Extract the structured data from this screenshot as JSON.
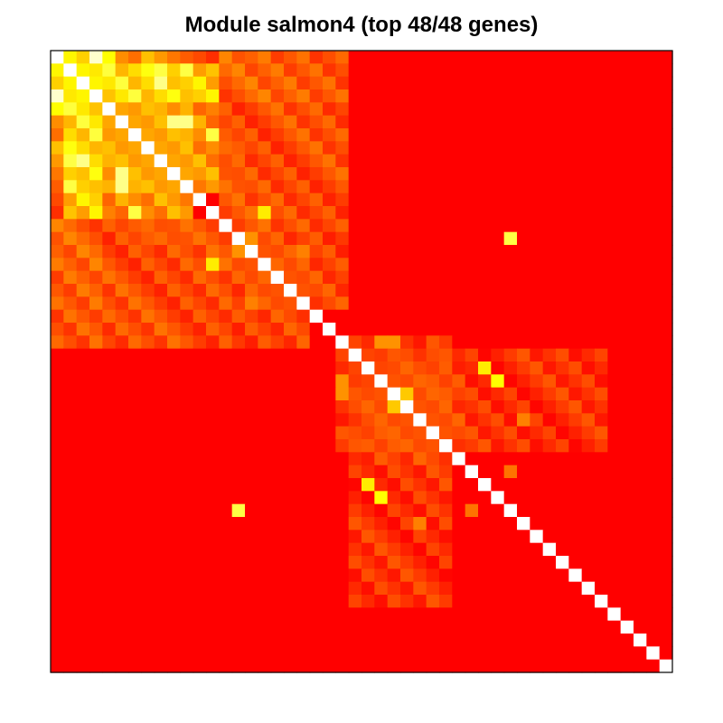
{
  "chart_data": {
    "type": "heatmap",
    "title": "Module salmon4 (top 48/48 genes)",
    "n_genes": 48,
    "xlabel": "",
    "ylabel": "",
    "grid": false,
    "legend": "none",
    "diagonal_color": "#ffffff",
    "colorscale": [
      "#ff0000",
      "#ff8000",
      "#ffff00",
      "#ffffcc"
    ],
    "value_range": [
      0,
      1
    ],
    "background_value": 0,
    "hot_regions": [
      {
        "rows": [
          1,
          3
        ],
        "cols": [
          0,
          12
        ],
        "value": 0.7
      },
      {
        "rows": [
          4,
          10
        ],
        "cols": [
          0,
          12
        ],
        "value": 0.48
      },
      {
        "rows": [
          0,
          3
        ],
        "cols": [
          13,
          22
        ],
        "value": 0.32
      },
      {
        "rows": [
          4,
          13
        ],
        "cols": [
          13,
          22
        ],
        "value": 0.25
      },
      {
        "rows": [
          14,
          19
        ],
        "cols": [
          15,
          22
        ],
        "value": 0.2
      },
      {
        "rows": [
          23,
          30
        ],
        "cols": [
          22,
          42
        ],
        "value": 0.14
      },
      {
        "rows": [
          11,
          14
        ],
        "cols": [
          0,
          10
        ],
        "value": 0.16
      },
      {
        "rows": [
          24,
          30
        ],
        "cols": [
          25,
          31
        ],
        "value": 0.2
      }
    ],
    "highlight_cells": [
      {
        "row": 0,
        "col": 3,
        "value": 1.0
      },
      {
        "row": 0,
        "col": 4,
        "value": 0.85
      },
      {
        "row": 1,
        "col": 8,
        "value": 0.9
      },
      {
        "row": 2,
        "col": 8,
        "value": 0.95
      },
      {
        "row": 5,
        "col": 9,
        "value": 0.95
      },
      {
        "row": 6,
        "col": 12,
        "value": 0.9
      },
      {
        "row": 7,
        "col": 1,
        "value": 0.85
      },
      {
        "row": 10,
        "col": 5,
        "value": 0.95
      },
      {
        "row": 10,
        "col": 1,
        "value": 0.9
      },
      {
        "row": 12,
        "col": 16,
        "value": 0.8
      },
      {
        "row": 14,
        "col": 15,
        "value": 0.55
      },
      {
        "row": 16,
        "col": 17,
        "value": 0.4
      },
      {
        "row": 19,
        "col": 15,
        "value": 0.5
      },
      {
        "row": 22,
        "col": 25,
        "value": 0.55
      },
      {
        "row": 22,
        "col": 26,
        "value": 0.55
      },
      {
        "row": 26,
        "col": 27,
        "value": 0.7
      },
      {
        "row": 24,
        "col": 33,
        "value": 0.8
      },
      {
        "row": 28,
        "col": 36,
        "value": 0.5
      },
      {
        "row": 32,
        "col": 35,
        "value": 0.45
      },
      {
        "row": 34,
        "col": 25,
        "value": 0.85
      },
      {
        "row": 35,
        "col": 14,
        "value": 0.9
      }
    ]
  }
}
